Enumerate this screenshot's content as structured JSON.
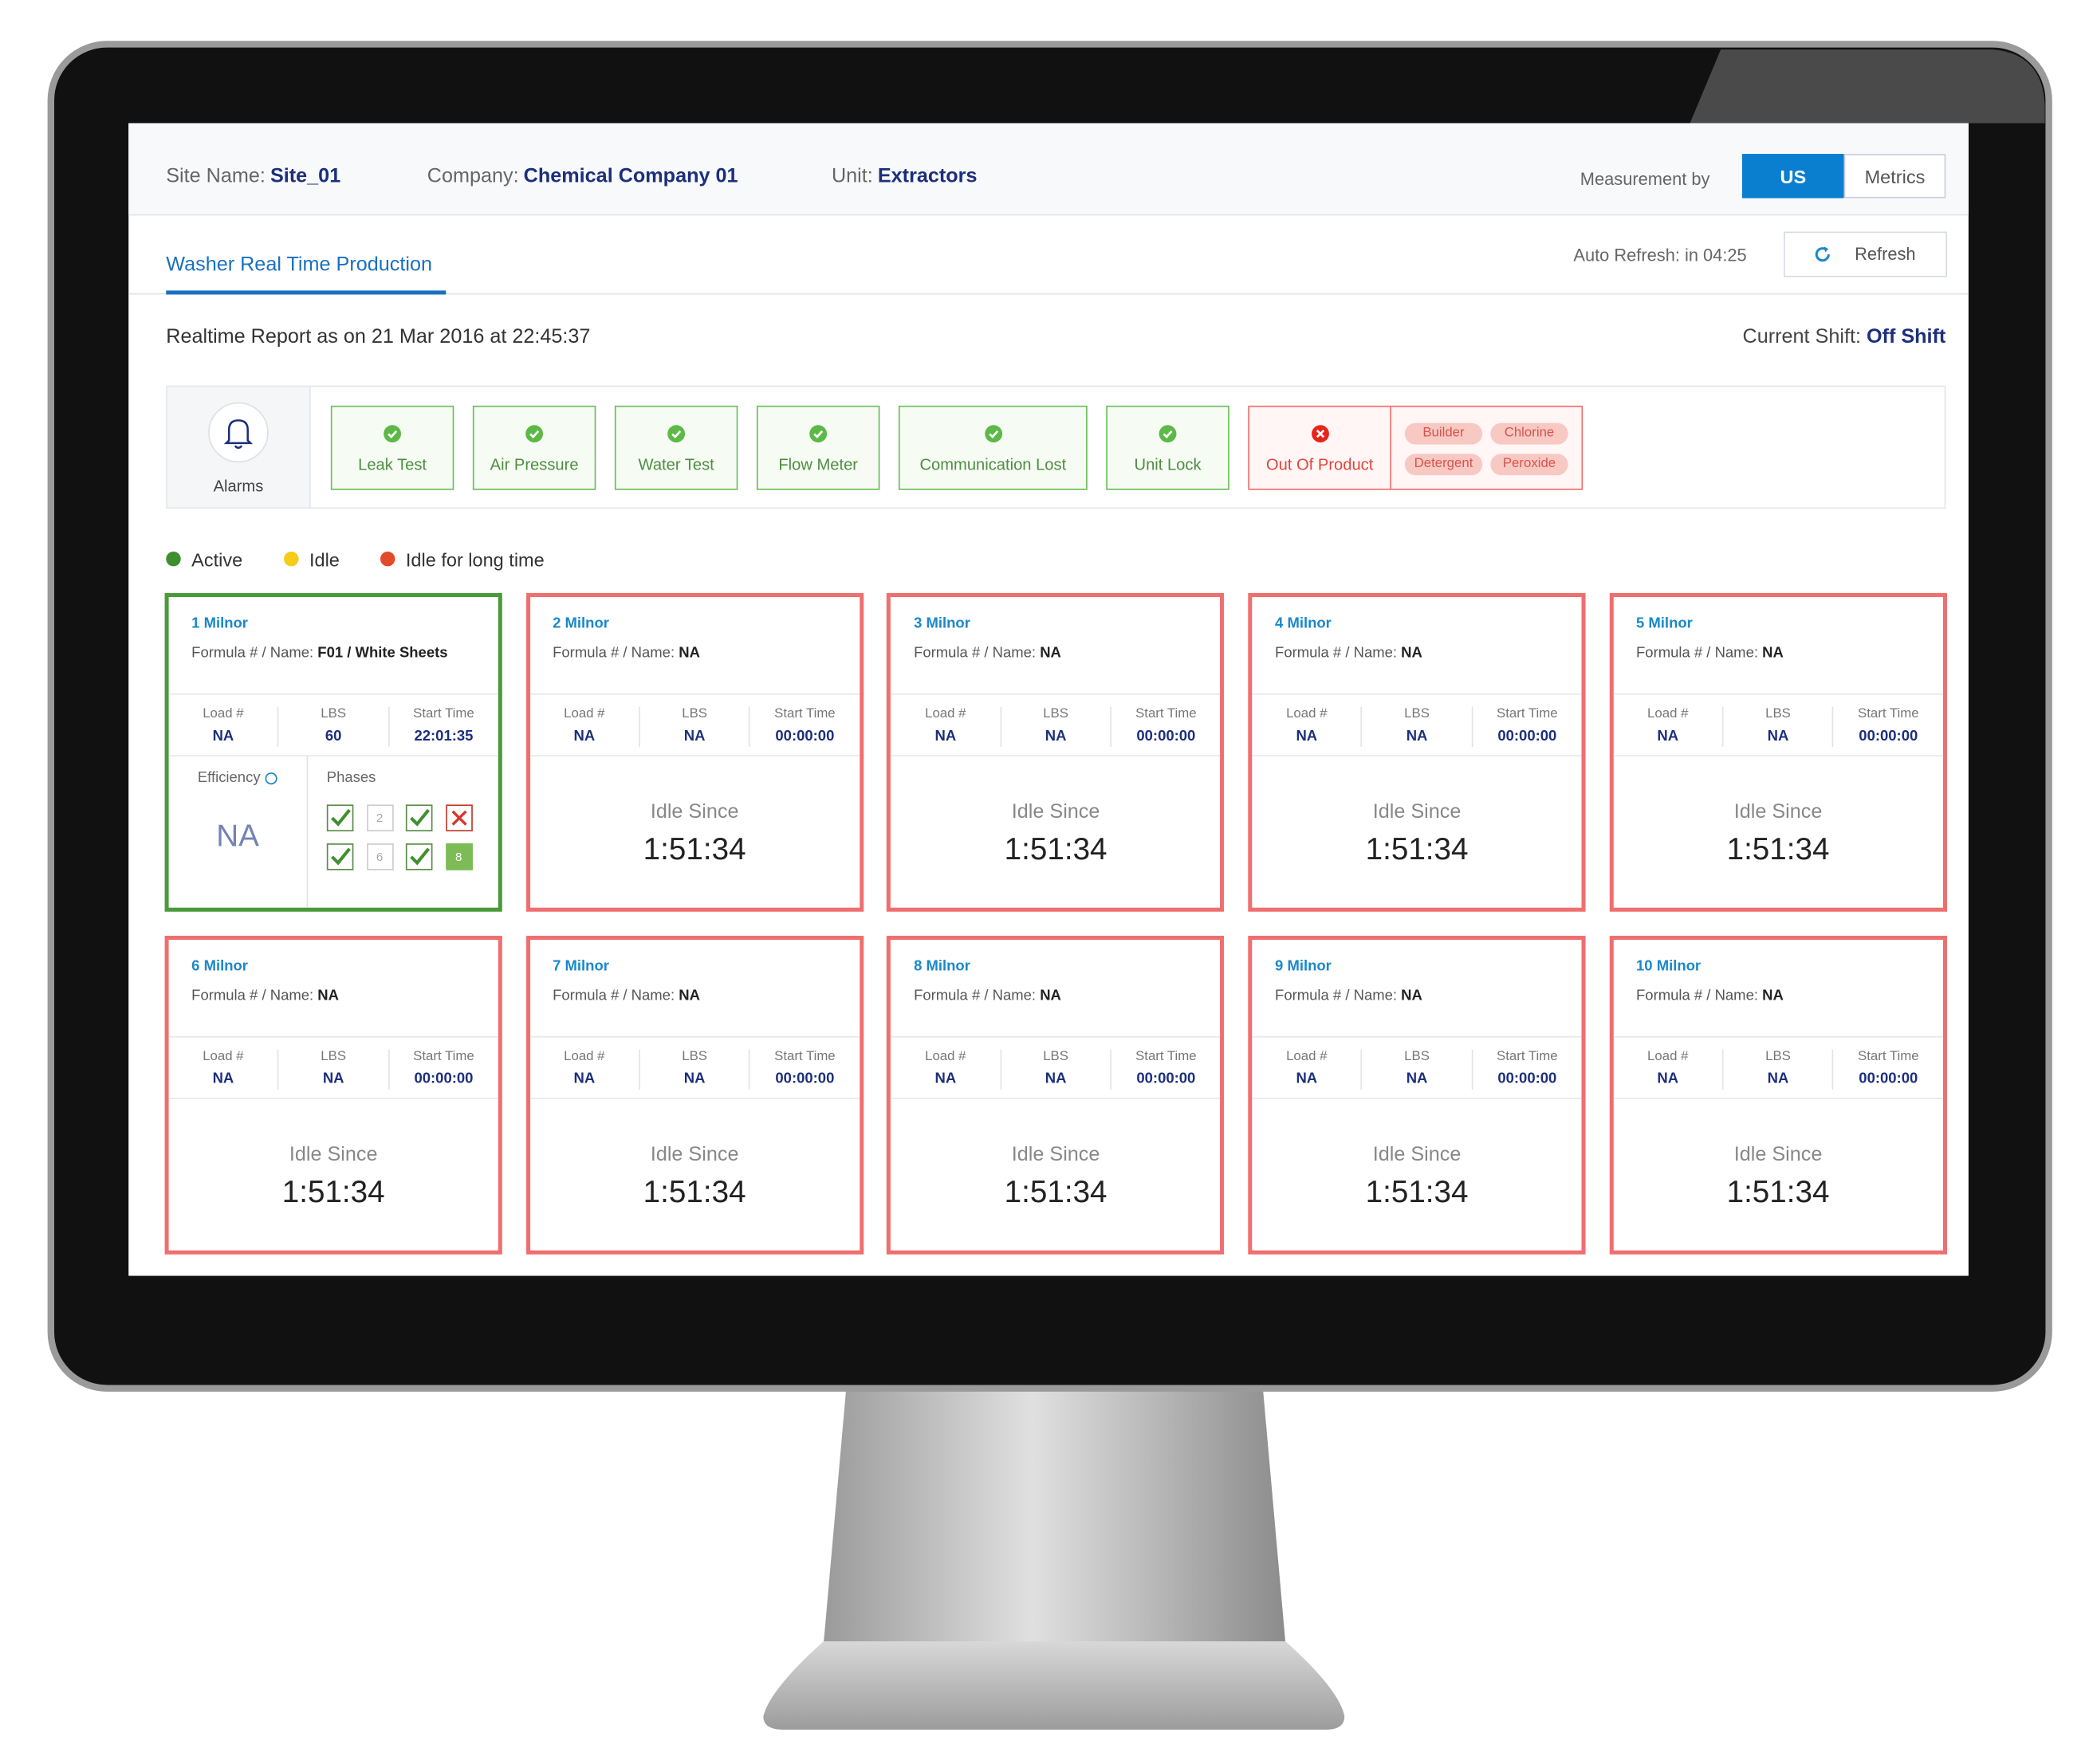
{
  "header": {
    "site_label": "Site Name:",
    "site": "Site_01",
    "company_label": "Company:",
    "company": "Chemical Company 01",
    "unit_label": "Unit:",
    "unit": "Extractors",
    "measurement_label": "Measurement by",
    "measurement_options": [
      "US",
      "Metrics"
    ],
    "measurement_selected": 0
  },
  "tabs": {
    "active_tab": "Washer Real Time Production",
    "auto_refresh": "Auto Refresh: in 04:25",
    "refresh_button": "Refresh"
  },
  "report": {
    "title": "Realtime Report as on 21 Mar 2016 at 22:45:37",
    "shift_label": "Current Shift:",
    "shift": "Off Shift"
  },
  "alarms": {
    "label": "Alarms",
    "items": [
      {
        "name": "Leak Test",
        "state": "ok"
      },
      {
        "name": "Air Pressure",
        "state": "ok"
      },
      {
        "name": "Water Test",
        "state": "ok"
      },
      {
        "name": "Flow Meter",
        "state": "ok"
      },
      {
        "name": "Communication Lost",
        "state": "ok"
      },
      {
        "name": "Unit Lock",
        "state": "ok"
      },
      {
        "name": "Out Of Product",
        "state": "error",
        "chips": [
          "Builder",
          "Chlorine",
          "Detergent",
          "Peroxide"
        ]
      }
    ]
  },
  "legend": [
    {
      "name": "Active",
      "color": "#3f8f2f"
    },
    {
      "name": "Idle",
      "color": "#f5cc17"
    },
    {
      "name": "Idle for long time",
      "color": "#e24b2c"
    }
  ],
  "labels": {
    "formula": "Formula # / Name:",
    "load": "Load #",
    "lbs": "LBS",
    "start": "Start Time",
    "idle_since": "Idle Since",
    "efficiency": "Efficiency",
    "phases": "Phases"
  },
  "machines": [
    {
      "name": "1 Milnor",
      "formula": "F01 / White Sheets",
      "load": "NA",
      "lbs": "60",
      "start": "22:01:35",
      "status": "active",
      "efficiency": "NA",
      "phases": [
        {
          "state": "done"
        },
        {
          "state": "pending",
          "label": "2"
        },
        {
          "state": "done"
        },
        {
          "state": "failed"
        },
        {
          "state": "done"
        },
        {
          "state": "pending",
          "label": "6"
        },
        {
          "state": "done"
        },
        {
          "state": "current",
          "label": "8"
        }
      ]
    },
    {
      "name": "2 Milnor",
      "formula": "NA",
      "load": "NA",
      "lbs": "NA",
      "start": "00:00:00",
      "status": "idle_long",
      "idle": "1:51:34"
    },
    {
      "name": "3 Milnor",
      "formula": "NA",
      "load": "NA",
      "lbs": "NA",
      "start": "00:00:00",
      "status": "idle_long",
      "idle": "1:51:34"
    },
    {
      "name": "4 Milnor",
      "formula": "NA",
      "load": "NA",
      "lbs": "NA",
      "start": "00:00:00",
      "status": "idle_long",
      "idle": "1:51:34"
    },
    {
      "name": "5 Milnor",
      "formula": "NA",
      "load": "NA",
      "lbs": "NA",
      "start": "00:00:00",
      "status": "idle_long",
      "idle": "1:51:34"
    },
    {
      "name": "6 Milnor",
      "formula": "NA",
      "load": "NA",
      "lbs": "NA",
      "start": "00:00:00",
      "status": "idle_long",
      "idle": "1:51:34"
    },
    {
      "name": "7 Milnor",
      "formula": "NA",
      "load": "NA",
      "lbs": "NA",
      "start": "00:00:00",
      "status": "idle_long",
      "idle": "1:51:34"
    },
    {
      "name": "8 Milnor",
      "formula": "NA",
      "load": "NA",
      "lbs": "NA",
      "start": "00:00:00",
      "status": "idle_long",
      "idle": "1:51:34"
    },
    {
      "name": "9 Milnor",
      "formula": "NA",
      "load": "NA",
      "lbs": "NA",
      "start": "00:00:00",
      "status": "idle_long",
      "idle": "1:51:34"
    },
    {
      "name": "10 Milnor",
      "formula": "NA",
      "load": "NA",
      "lbs": "NA",
      "start": "00:00:00",
      "status": "idle_long",
      "idle": "1:51:34"
    }
  ]
}
